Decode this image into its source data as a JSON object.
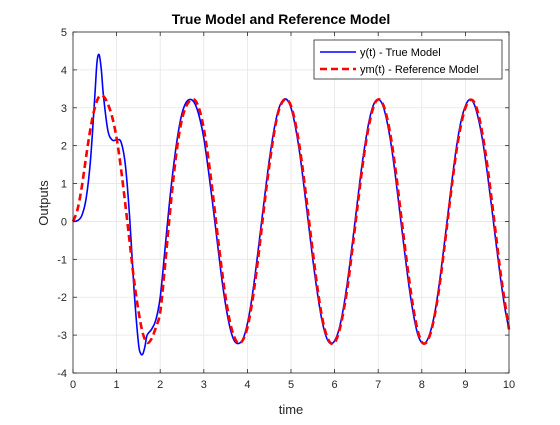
{
  "chart_data": {
    "type": "line",
    "title": "True Model and Reference Model",
    "xlabel": "time",
    "ylabel": "Outputs",
    "xlim": [
      0,
      10
    ],
    "ylim": [
      -4,
      5
    ],
    "xticks": [
      0,
      1,
      2,
      3,
      4,
      5,
      6,
      7,
      8,
      9,
      10
    ],
    "yticks": [
      -4,
      -3,
      -2,
      -1,
      0,
      1,
      2,
      3,
      4,
      5
    ],
    "grid": true,
    "legend_position": "top-right",
    "series": [
      {
        "name": "y(t) - True Model",
        "color": "#0000ff",
        "style": "solid",
        "x": [
          0,
          0.1,
          0.2,
          0.3,
          0.4,
          0.5,
          0.55,
          0.6,
          0.65,
          0.7,
          0.8,
          0.9,
          1.0,
          1.1,
          1.2,
          1.3,
          1.4,
          1.5,
          1.55,
          1.6,
          1.65,
          1.7,
          1.8,
          1.9,
          2.0,
          2.1,
          2.2,
          2.3,
          2.4,
          2.5,
          2.6,
          2.7,
          2.8,
          2.9,
          3.0,
          3.1,
          3.2,
          3.3,
          3.4,
          3.5,
          3.6,
          3.7,
          3.8,
          3.9,
          4.0,
          4.1,
          4.2,
          4.3,
          4.4,
          4.5,
          4.6,
          4.7,
          4.8,
          4.9,
          5.0,
          5.1,
          5.2,
          5.3,
          5.4,
          5.5,
          5.6,
          5.7,
          5.8,
          5.9,
          6.0,
          6.1,
          6.2,
          6.3,
          6.4,
          6.5,
          6.6,
          6.7,
          6.8,
          6.9,
          7.0,
          7.1,
          7.2,
          7.3,
          7.4,
          7.5,
          7.6,
          7.7,
          7.8,
          7.9,
          8.0,
          8.1,
          8.2,
          8.3,
          8.4,
          8.5,
          8.6,
          8.7,
          8.8,
          8.9,
          9.0,
          9.1,
          9.2,
          9.3,
          9.4,
          9.5,
          9.6,
          9.7,
          9.8,
          9.9,
          10.0
        ],
        "y": [
          0.0,
          0.02,
          0.15,
          0.6,
          1.6,
          3.3,
          4.2,
          4.4,
          4.0,
          3.3,
          2.4,
          2.15,
          2.15,
          2.1,
          1.5,
          0.1,
          -1.8,
          -3.2,
          -3.48,
          -3.5,
          -3.3,
          -3.0,
          -2.85,
          -2.6,
          -2.0,
          -0.85,
          0.35,
          1.4,
          2.25,
          2.85,
          3.15,
          3.22,
          3.1,
          2.75,
          2.2,
          1.4,
          0.5,
          -0.45,
          -1.4,
          -2.2,
          -2.8,
          -3.15,
          -3.22,
          -3.1,
          -2.7,
          -2.05,
          -1.2,
          -0.25,
          0.7,
          1.6,
          2.35,
          2.9,
          3.18,
          3.22,
          3.0,
          2.5,
          1.8,
          0.9,
          -0.05,
          -1.0,
          -1.85,
          -2.55,
          -3.02,
          -3.22,
          -3.15,
          -2.85,
          -2.3,
          -1.55,
          -0.65,
          0.3,
          1.25,
          2.05,
          2.7,
          3.1,
          3.22,
          3.08,
          2.65,
          2.0,
          1.15,
          0.2,
          -0.75,
          -1.65,
          -2.4,
          -2.95,
          -3.2,
          -3.18,
          -2.9,
          -2.4,
          -1.65,
          -0.75,
          0.2,
          1.15,
          2.0,
          2.65,
          3.05,
          3.22,
          3.1,
          2.7,
          2.1,
          1.3,
          0.4,
          -0.55,
          -1.45,
          -2.25,
          -2.85
        ]
      },
      {
        "name": "ym(t) - Reference Model",
        "color": "#ff0000",
        "style": "dashed",
        "x": [
          0,
          0.1,
          0.2,
          0.3,
          0.4,
          0.5,
          0.6,
          0.7,
          0.8,
          0.9,
          1.0,
          1.1,
          1.2,
          1.3,
          1.4,
          1.5,
          1.6,
          1.7,
          1.8,
          1.9,
          2.0,
          2.1,
          2.2,
          2.3,
          2.4,
          2.5,
          2.6,
          2.7,
          2.8,
          2.9,
          3.0,
          3.1,
          3.2,
          3.3,
          3.4,
          3.5,
          3.6,
          3.7,
          3.8,
          3.9,
          4.0,
          4.1,
          4.2,
          4.3,
          4.4,
          4.5,
          4.6,
          4.7,
          4.8,
          4.9,
          5.0,
          5.1,
          5.2,
          5.3,
          5.4,
          5.5,
          5.6,
          5.7,
          5.8,
          5.9,
          6.0,
          6.1,
          6.2,
          6.3,
          6.4,
          6.5,
          6.6,
          6.7,
          6.8,
          6.9,
          7.0,
          7.1,
          7.2,
          7.3,
          7.4,
          7.5,
          7.6,
          7.7,
          7.8,
          7.9,
          8.0,
          8.1,
          8.2,
          8.3,
          8.4,
          8.5,
          8.6,
          8.7,
          8.8,
          8.9,
          9.0,
          9.1,
          9.2,
          9.3,
          9.4,
          9.5,
          9.6,
          9.7,
          9.8,
          9.9,
          10.0
        ],
        "y": [
          0.0,
          0.3,
          0.9,
          1.7,
          2.45,
          3.0,
          3.3,
          3.3,
          3.1,
          2.75,
          2.2,
          1.4,
          0.45,
          -0.55,
          -1.55,
          -2.35,
          -2.95,
          -3.2,
          -3.1,
          -2.8,
          -2.4,
          -1.3,
          -0.05,
          1.1,
          2.05,
          2.7,
          3.05,
          3.2,
          3.2,
          2.95,
          2.45,
          1.7,
          0.8,
          -0.2,
          -1.15,
          -2.0,
          -2.65,
          -3.05,
          -3.22,
          -3.12,
          -2.8,
          -2.2,
          -1.4,
          -0.45,
          0.55,
          1.45,
          2.25,
          2.85,
          3.15,
          3.22,
          3.05,
          2.6,
          1.95,
          1.1,
          0.15,
          -0.8,
          -1.7,
          -2.45,
          -2.95,
          -3.2,
          -3.2,
          -2.92,
          -2.4,
          -1.7,
          -0.8,
          0.15,
          1.1,
          1.95,
          2.6,
          3.05,
          3.22,
          3.12,
          2.75,
          2.15,
          1.35,
          0.4,
          -0.55,
          -1.45,
          -2.25,
          -2.85,
          -3.18,
          -3.2,
          -2.95,
          -2.45,
          -1.75,
          -0.85,
          0.1,
          1.05,
          1.9,
          2.55,
          3.0,
          3.2,
          3.15,
          2.82,
          2.25,
          1.5,
          0.6,
          -0.35,
          -1.3,
          -2.1,
          -2.85
        ]
      }
    ]
  }
}
